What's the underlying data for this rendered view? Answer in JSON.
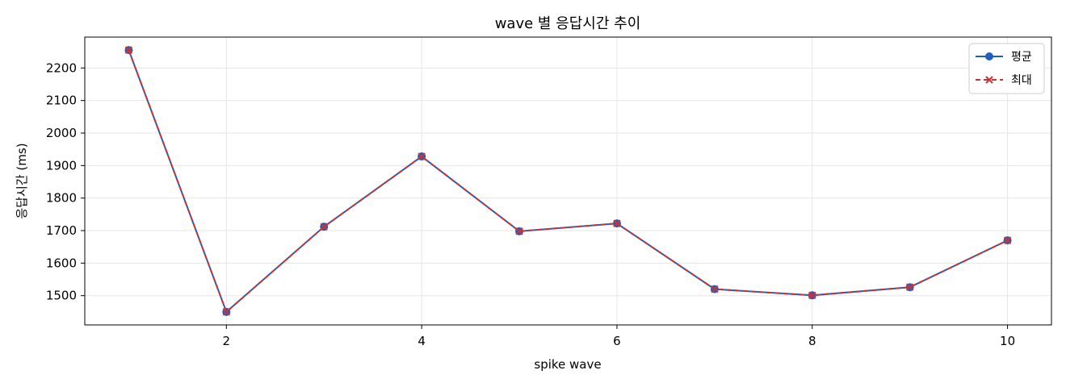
{
  "chart_data": {
    "type": "line",
    "title": "wave 별 응답시간 추이",
    "xlabel": "spike wave",
    "ylabel": "응답시간 (ms)",
    "x": [
      1,
      2,
      3,
      4,
      5,
      6,
      7,
      8,
      9,
      10
    ],
    "xlim": [
      0.55,
      10.45
    ],
    "ylim": [
      1410,
      2295
    ],
    "x_ticks": [
      2,
      4,
      6,
      8,
      10
    ],
    "y_ticks": [
      1500,
      1600,
      1700,
      1800,
      1900,
      2000,
      2100,
      2200
    ],
    "grid": true,
    "legend_position": "top-right",
    "series": [
      {
        "name": "평균",
        "values": [
          2255,
          1450,
          1712,
          1928,
          1698,
          1722,
          1520,
          1501,
          1526,
          1670
        ],
        "color": "#1f5fbf",
        "linestyle": "solid",
        "marker": "circle"
      },
      {
        "name": "최대",
        "values": [
          2255,
          1450,
          1712,
          1928,
          1698,
          1722,
          1520,
          1501,
          1526,
          1670
        ],
        "color": "#cc3333",
        "linestyle": "dashed",
        "marker": "x"
      }
    ]
  }
}
